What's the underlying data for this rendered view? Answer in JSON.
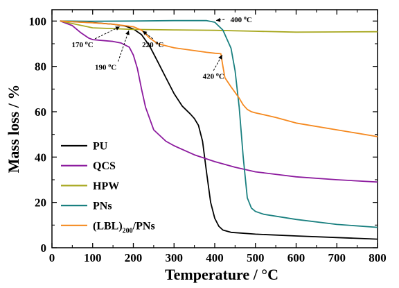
{
  "chart_data": {
    "type": "line",
    "xlabel": "Temperature / °C",
    "ylabel": "Mass loss / %",
    "xlim": [
      0,
      800
    ],
    "ylim": [
      0,
      105
    ],
    "xticks": [
      0,
      100,
      200,
      300,
      400,
      500,
      600,
      700,
      800
    ],
    "yticks": [
      0,
      20,
      40,
      60,
      80,
      100
    ],
    "grid": false,
    "legend_position": "bottom-left",
    "series": [
      {
        "name": "PU",
        "label_parts": [
          "PU",
          "",
          ""
        ],
        "color": "#000000",
        "x": [
          20,
          100,
          150,
          180,
          200,
          220,
          240,
          260,
          280,
          300,
          320,
          340,
          350,
          360,
          370,
          380,
          390,
          400,
          410,
          420,
          440,
          500,
          600,
          700,
          800
        ],
        "y": [
          100,
          99.3,
          98.6,
          97.8,
          96.5,
          94,
          89,
          82,
          75,
          68,
          62.5,
          59,
          57,
          54,
          47,
          33,
          20,
          13,
          9.5,
          7.8,
          6.8,
          6,
          5.2,
          4.5,
          3.8
        ]
      },
      {
        "name": "QCS",
        "label_parts": [
          "QCS",
          "",
          ""
        ],
        "color": "#8c1a9e",
        "x": [
          20,
          50,
          70,
          90,
          100,
          150,
          170,
          190,
          200,
          210,
          220,
          230,
          250,
          280,
          300,
          350,
          400,
          450,
          500,
          600,
          700,
          800
        ],
        "y": [
          100,
          98,
          95,
          92.5,
          91.8,
          91,
          90.3,
          88.5,
          85,
          79,
          70,
          62,
          52,
          47,
          45,
          41,
          38,
          35.5,
          33.5,
          31.3,
          30,
          29
        ]
      },
      {
        "name": "HPW",
        "label_parts": [
          "HPW",
          "",
          ""
        ],
        "color": "#a8a820",
        "x": [
          20,
          100,
          200,
          300,
          400,
          500,
          600,
          700,
          800
        ],
        "y": [
          100,
          97,
          96.3,
          96.1,
          95.9,
          95.5,
          95.1,
          95.2,
          95.3
        ]
      },
      {
        "name": "PNs",
        "label_parts": [
          "PNs",
          "",
          ""
        ],
        "color": "#1a8080",
        "x": [
          20,
          100,
          200,
          300,
          380,
          400,
          420,
          440,
          450,
          460,
          470,
          480,
          490,
          500,
          520,
          600,
          700,
          800
        ],
        "y": [
          100,
          99.9,
          100,
          100.2,
          100.2,
          99.5,
          96,
          88,
          78,
          62,
          40,
          22,
          17.5,
          16,
          14.8,
          12.5,
          10.3,
          9
        ]
      },
      {
        "name": "(LBL)200/PNs",
        "label_parts": [
          "(LBL)",
          "200",
          "/PNs"
        ],
        "color": "#f5891f",
        "x": [
          20,
          100,
          150,
          200,
          220,
          240,
          260,
          300,
          340,
          380,
          400,
          415,
          420,
          425,
          440,
          460,
          470,
          480,
          490,
          500,
          550,
          600,
          700,
          800
        ],
        "y": [
          100,
          99.2,
          98.6,
          97.5,
          96,
          92.5,
          90,
          88.2,
          87.2,
          86.2,
          85.8,
          85.6,
          80,
          75,
          71,
          66,
          63,
          61,
          60,
          59.5,
          57.5,
          55,
          52,
          49
        ]
      }
    ],
    "annotations": [
      {
        "text": "170 °C",
        "number": "170",
        "unit": "C",
        "x": 170,
        "y": 97.8,
        "label_x": 75,
        "label_y": 88.5
      },
      {
        "text": "190 °C",
        "number": "190",
        "unit": "C",
        "x": 190,
        "y": 96.4,
        "label_x": 132,
        "label_y": 78.5
      },
      {
        "text": "220 °C",
        "number": "220",
        "unit": "C",
        "x": 220,
        "y": 96,
        "label_x": 248,
        "label_y": 88.5
      },
      {
        "text": "400 °C",
        "number": "400",
        "unit": "C",
        "x": 400,
        "y": 100.2,
        "label_x": 465,
        "label_y": 99.5
      },
      {
        "text": "420 °C",
        "number": "420",
        "unit": "C",
        "x": 420,
        "y": 85.6,
        "label_x": 397,
        "label_y": 74.5
      }
    ]
  }
}
